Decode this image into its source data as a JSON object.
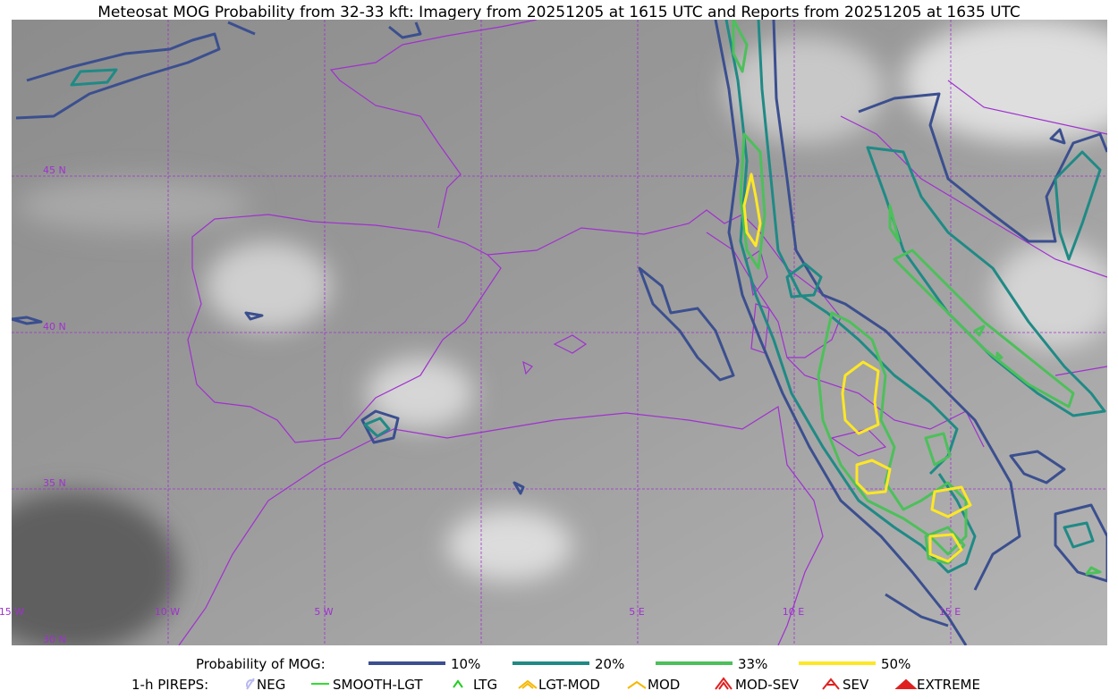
{
  "title": "Meteosat MOG Probability from 32-33 kft: Imagery from 20251205 at 1615 UTC and Reports from 20251205 at 1635 UTC",
  "map": {
    "lat_labels": [
      "45 N",
      "40 N",
      "35 N",
      "30 N"
    ],
    "lon_labels": [
      "15 W",
      "10 W",
      "5 W",
      "5 E",
      "10 E",
      "15 E"
    ]
  },
  "legend": {
    "mog_title": "Probability of MOG:",
    "mog_levels": [
      {
        "label": "10%",
        "color": "#3b4f8f"
      },
      {
        "label": "20%",
        "color": "#1f8a85"
      },
      {
        "label": "33%",
        "color": "#4cc05a"
      },
      {
        "label": "50%",
        "color": "#fde725"
      }
    ],
    "pireps_title": "1-h PIREPS:",
    "pireps": [
      {
        "label": "NEG",
        "color": "#b9b9f0"
      },
      {
        "label": "SMOOTH-LGT",
        "color": "#33dd33"
      },
      {
        "label": "LTG",
        "color": "#22cc22"
      },
      {
        "label": "LGT-MOD",
        "color": "#f5b800"
      },
      {
        "label": "MOD",
        "color": "#f5b800"
      },
      {
        "label": "MOD-SEV",
        "color": "#e02020"
      },
      {
        "label": "SEV",
        "color": "#e02020"
      },
      {
        "label": "EXTREME",
        "color": "#e02020"
      }
    ]
  }
}
